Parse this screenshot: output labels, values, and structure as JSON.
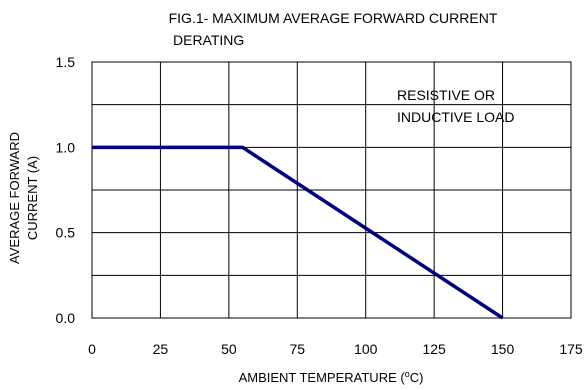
{
  "chart_data": {
    "type": "line",
    "title": "FIG.1- MAXIMUM AVERAGE FORWARD CURRENT",
    "title_line2": "DERATING",
    "xlabel": "AMBIENT TEMPERATURE (",
    "xlabel_sup": "o",
    "xlabel_suffix": "C)",
    "ylabel": "AVERAGE FORWARD",
    "ylabel_line2": "CURRENT (A)",
    "xlim": [
      0,
      175
    ],
    "ylim": [
      0,
      1.5
    ],
    "xticks": [
      0,
      25,
      50,
      75,
      100,
      125,
      150,
      175
    ],
    "xtick_labels": [
      "0",
      "25",
      "50",
      "75",
      "100",
      "125",
      "150",
      "175"
    ],
    "yticks": [
      0,
      0.5,
      1.0,
      1.5
    ],
    "ytick_labels": [
      "0.0",
      "0.5",
      "1.0",
      "1.5"
    ],
    "grid": true,
    "series": [
      {
        "x": [
          0,
          55,
          150
        ],
        "y": [
          1.0,
          1.0,
          0.0
        ],
        "color": "#000080"
      }
    ],
    "annotation_line1": "RESISTIVE OR",
    "annotation_line2": "INDUCTIVE LOAD"
  }
}
